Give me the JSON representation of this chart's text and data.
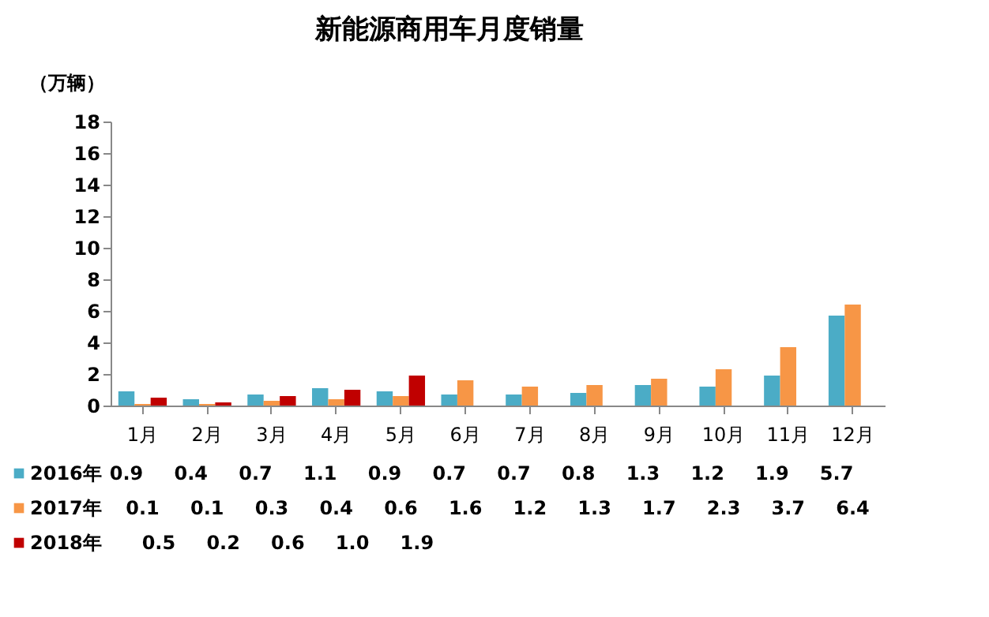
{
  "chart_data": {
    "type": "bar",
    "title": "新能源商用车月度销量",
    "ylabel": "（万辆）",
    "categories": [
      "1月",
      "2月",
      "3月",
      "4月",
      "5月",
      "6月",
      "7月",
      "8月",
      "9月",
      "10月",
      "11月",
      "12月"
    ],
    "series": [
      {
        "name": "2016年",
        "color": "#4bacc6",
        "values": [
          0.9,
          0.4,
          0.7,
          1.1,
          0.9,
          0.7,
          0.7,
          0.8,
          1.3,
          1.2,
          1.9,
          5.7
        ],
        "value_labels": [
          "0.9",
          "0.4",
          "0.7",
          "1.1",
          "0.9",
          "0.7",
          "0.7",
          "0.8",
          "1.3",
          "1.2",
          "1.9",
          "5.7"
        ]
      },
      {
        "name": "2017年",
        "color": "#f79646",
        "values": [
          0.1,
          0.1,
          0.3,
          0.4,
          0.6,
          1.6,
          1.2,
          1.3,
          1.7,
          2.3,
          3.7,
          6.4
        ],
        "value_labels": [
          "0.1",
          "0.1",
          "0.3",
          "0.4",
          "0.6",
          "1.6",
          "1.2",
          "1.3",
          "1.7",
          "2.3",
          "3.7",
          "6.4"
        ]
      },
      {
        "name": "2018年",
        "color": "#c00000",
        "values": [
          0.5,
          0.2,
          0.6,
          1.0,
          1.9,
          null,
          null,
          null,
          null,
          null,
          null,
          null
        ],
        "value_labels": [
          "0.5",
          "0.2",
          "0.6",
          "1.0",
          "1.9",
          null,
          null,
          null,
          null,
          null,
          null,
          null
        ]
      }
    ],
    "ylim": [
      0,
      18
    ],
    "yticks": [
      0,
      2,
      4,
      6,
      8,
      10,
      12,
      14,
      16,
      18
    ],
    "grid": false,
    "legend": "bottom"
  }
}
